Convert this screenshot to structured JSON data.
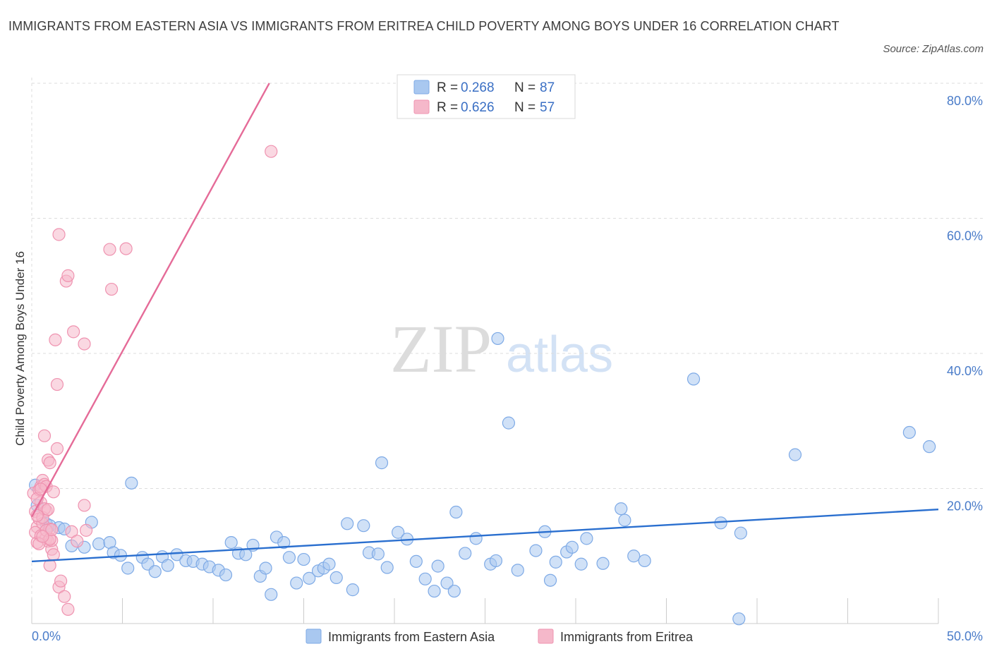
{
  "title": "IMMIGRANTS FROM EASTERN ASIA VS IMMIGRANTS FROM ERITREA CHILD POVERTY AMONG BOYS UNDER 16 CORRELATION CHART",
  "source": "Source: ZipAtlas.com",
  "watermark": {
    "zip": "ZIP",
    "atlas": "atlas"
  },
  "colors": {
    "blue_fill": "#a9c8f0",
    "blue_stroke": "#7eaae6",
    "blue_line": "#2a6fcf",
    "pink_fill": "#f5b8ca",
    "pink_stroke": "#ef93b0",
    "pink_line": "#e56b98",
    "grid": "#dddddd",
    "axis_text": "#4a7cc9"
  },
  "legend": {
    "rows": [
      {
        "r_label": "R = ",
        "r_value": "0.268",
        "n_label": "N = ",
        "n_value": "87",
        "color": "blue"
      },
      {
        "r_label": "R = ",
        "r_value": "0.626",
        "n_label": "N = ",
        "n_value": "57",
        "color": "pink"
      }
    ]
  },
  "chart_data": {
    "type": "scatter",
    "title": "IMMIGRANTS FROM EASTERN ASIA VS IMMIGRANTS FROM ERITREA CHILD POVERTY AMONG BOYS UNDER 16 CORRELATION CHART",
    "xlabel": "",
    "ylabel": "Child Poverty Among Boys Under 16",
    "xlim": [
      0,
      50
    ],
    "ylim": [
      0,
      80
    ],
    "x_tick_labels": [
      "0.0%",
      "50.0%"
    ],
    "y_ticks": [
      20,
      40,
      60,
      80
    ],
    "y_tick_labels": [
      "20.0%",
      "40.0%",
      "60.0%",
      "80.0%"
    ],
    "grid": true,
    "legend_position": "top-center",
    "series": [
      {
        "name": "Immigrants from Eastern Asia",
        "color": "blue",
        "trend": {
          "x": [
            0,
            50
          ],
          "y": [
            9.2,
            16.9
          ]
        },
        "points": [
          [
            0.2,
            20.5
          ],
          [
            0.3,
            17.5
          ],
          [
            0.8,
            14.8
          ],
          [
            1.0,
            14.5
          ],
          [
            1.5,
            14.2
          ],
          [
            1.8,
            14.0
          ],
          [
            2.2,
            11.5
          ],
          [
            2.9,
            11.3
          ],
          [
            3.3,
            15.0
          ],
          [
            3.7,
            11.8
          ],
          [
            4.3,
            12.0
          ],
          [
            4.5,
            10.5
          ],
          [
            4.9,
            10.1
          ],
          [
            5.3,
            8.2
          ],
          [
            5.5,
            20.8
          ],
          [
            6.1,
            9.8
          ],
          [
            6.4,
            8.8
          ],
          [
            6.8,
            7.7
          ],
          [
            7.2,
            9.9
          ],
          [
            7.5,
            8.6
          ],
          [
            8.0,
            10.2
          ],
          [
            8.5,
            9.3
          ],
          [
            8.9,
            9.2
          ],
          [
            9.4,
            8.8
          ],
          [
            9.8,
            8.4
          ],
          [
            10.3,
            7.9
          ],
          [
            10.7,
            7.2
          ],
          [
            11.0,
            12.0
          ],
          [
            11.4,
            10.4
          ],
          [
            11.8,
            10.2
          ],
          [
            12.2,
            11.6
          ],
          [
            12.6,
            7.0
          ],
          [
            12.9,
            8.2
          ],
          [
            13.2,
            4.3
          ],
          [
            13.5,
            12.8
          ],
          [
            13.9,
            12.0
          ],
          [
            14.2,
            9.8
          ],
          [
            14.6,
            6.0
          ],
          [
            15.0,
            9.5
          ],
          [
            15.3,
            6.7
          ],
          [
            15.8,
            7.8
          ],
          [
            16.1,
            8.2
          ],
          [
            16.4,
            8.8
          ],
          [
            16.8,
            6.8
          ],
          [
            17.4,
            14.8
          ],
          [
            17.7,
            5.0
          ],
          [
            18.3,
            14.5
          ],
          [
            18.6,
            10.5
          ],
          [
            19.1,
            10.3
          ],
          [
            19.3,
            23.8
          ],
          [
            19.6,
            8.3
          ],
          [
            20.2,
            13.5
          ],
          [
            20.7,
            12.5
          ],
          [
            21.2,
            9.2
          ],
          [
            21.7,
            6.6
          ],
          [
            22.2,
            4.8
          ],
          [
            22.4,
            8.5
          ],
          [
            22.9,
            6.0
          ],
          [
            23.3,
            4.8
          ],
          [
            23.4,
            16.5
          ],
          [
            23.9,
            10.4
          ],
          [
            24.5,
            12.6
          ],
          [
            25.3,
            8.8
          ],
          [
            25.6,
            9.3
          ],
          [
            25.7,
            42.2
          ],
          [
            26.3,
            29.7
          ],
          [
            26.8,
            7.9
          ],
          [
            27.8,
            10.8
          ],
          [
            28.3,
            13.6
          ],
          [
            28.6,
            6.4
          ],
          [
            28.9,
            9.1
          ],
          [
            29.5,
            10.6
          ],
          [
            29.8,
            11.3
          ],
          [
            30.3,
            8.8
          ],
          [
            30.6,
            12.6
          ],
          [
            31.5,
            8.9
          ],
          [
            32.5,
            17.0
          ],
          [
            32.7,
            15.3
          ],
          [
            33.2,
            10.0
          ],
          [
            33.8,
            9.3
          ],
          [
            36.5,
            36.2
          ],
          [
            38.0,
            14.9
          ],
          [
            39.1,
            13.4
          ],
          [
            39.0,
            0.7
          ],
          [
            42.1,
            25.0
          ],
          [
            48.4,
            28.3
          ],
          [
            49.5,
            26.2
          ]
        ]
      },
      {
        "name": "Immigrants from Eritrea",
        "color": "pink",
        "trend": {
          "x": [
            0,
            13.1
          ],
          "y": [
            15.8,
            80.0
          ]
        },
        "points": [
          [
            0.1,
            19.3
          ],
          [
            0.2,
            16.6
          ],
          [
            0.3,
            14.3
          ],
          [
            0.3,
            12.0
          ],
          [
            0.4,
            19.8
          ],
          [
            0.4,
            15.5
          ],
          [
            0.5,
            20.3
          ],
          [
            0.5,
            17.9
          ],
          [
            0.6,
            14.8
          ],
          [
            0.6,
            21.2
          ],
          [
            0.7,
            20.6
          ],
          [
            0.7,
            27.8
          ],
          [
            0.8,
            12.6
          ],
          [
            0.8,
            16.7
          ],
          [
            0.8,
            20.3
          ],
          [
            0.9,
            24.2
          ],
          [
            0.9,
            12.2
          ],
          [
            1.0,
            23.8
          ],
          [
            1.0,
            14.0
          ],
          [
            1.0,
            8.6
          ],
          [
            1.1,
            11.0
          ],
          [
            1.1,
            12.3
          ],
          [
            1.2,
            10.2
          ],
          [
            1.2,
            19.5
          ],
          [
            1.3,
            42.0
          ],
          [
            1.4,
            25.9
          ],
          [
            1.4,
            35.4
          ],
          [
            1.5,
            57.6
          ],
          [
            1.5,
            5.4
          ],
          [
            1.6,
            6.3
          ],
          [
            1.8,
            4.0
          ],
          [
            1.9,
            50.7
          ],
          [
            2.0,
            51.5
          ],
          [
            2.0,
            2.1
          ],
          [
            2.2,
            13.6
          ],
          [
            2.3,
            43.2
          ],
          [
            2.5,
            12.2
          ],
          [
            2.9,
            17.5
          ],
          [
            2.9,
            41.4
          ],
          [
            3.0,
            13.8
          ],
          [
            4.3,
            55.4
          ],
          [
            4.4,
            49.5
          ],
          [
            5.2,
            55.5
          ],
          [
            13.2,
            69.9
          ],
          [
            0.2,
            13.5
          ],
          [
            0.3,
            18.5
          ],
          [
            0.5,
            13.0
          ],
          [
            0.6,
            15.7
          ],
          [
            0.7,
            17.0
          ],
          [
            0.8,
            13.8
          ],
          [
            0.9,
            16.9
          ],
          [
            1.0,
            12.5
          ],
          [
            1.1,
            13.9
          ],
          [
            0.4,
            11.8
          ],
          [
            0.6,
            12.9
          ],
          [
            0.3,
            16.0
          ],
          [
            0.5,
            19.9
          ]
        ]
      }
    ]
  },
  "bottom_legend": [
    {
      "label": "Immigrants from Eastern Asia",
      "color": "blue"
    },
    {
      "label": "Immigrants from Eritrea",
      "color": "pink"
    }
  ]
}
